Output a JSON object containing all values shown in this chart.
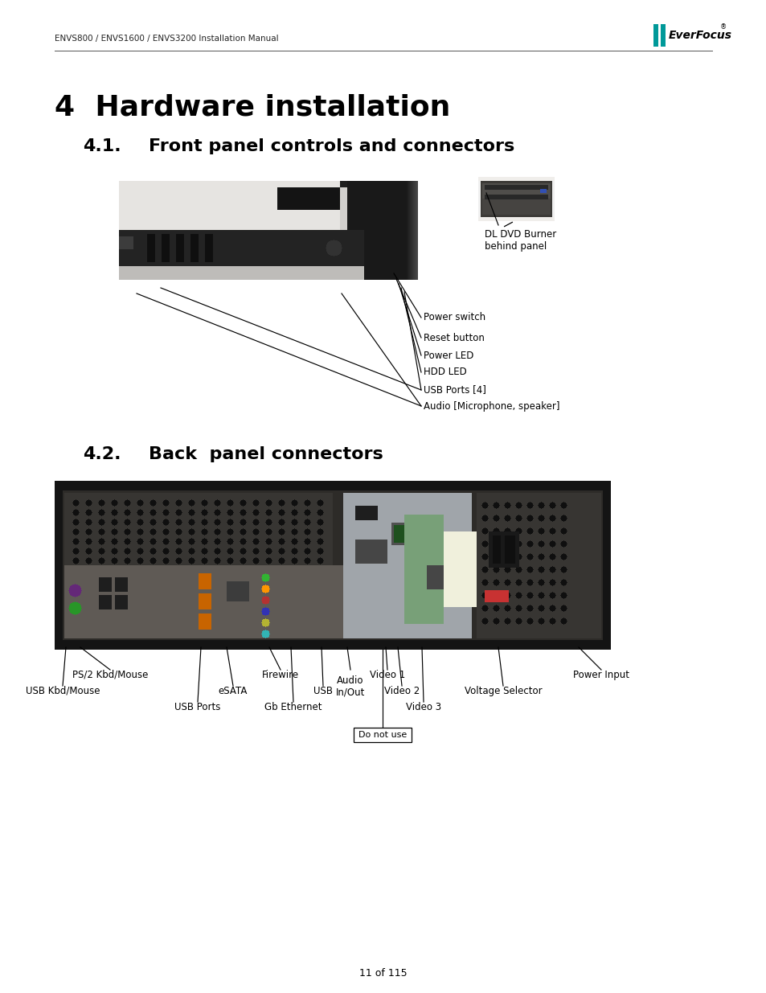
{
  "bg_color": "#ffffff",
  "header_text": "ENVS800 / ENVS1600 / ENVS3200 Installation Manual",
  "header_font_size": 7.5,
  "chapter_title": "4  Hardware installation",
  "chapter_font_size": 26,
  "section1_number": "4.1.",
  "section1_text": "Front panel controls and connectors",
  "section1_font_size": 16,
  "section2_number": "4.2.",
  "section2_text": "Back  panel connectors",
  "section2_font_size": 16,
  "front_panel_labels": [
    "DL DVD Burner\nbehind panel",
    "Power switch",
    "Reset button",
    "Power LED",
    "HDD LED",
    "USB Ports [4]",
    "Audio [Microphone, speaker]"
  ],
  "back_panel_labels": [
    "PS/2 Kbd/Mouse",
    "USB Kbd/Mouse",
    "USB Ports",
    "eSATA",
    "Firewire",
    "Gb Ethernet",
    "USB",
    "Audio\nIn/Out",
    "Video 1",
    "Video 2",
    "Video 3",
    "Voltage Selector",
    "Power Input"
  ],
  "footer_text": "11 of 115",
  "footer_font_size": 9,
  "label_font_size": 8.5,
  "everfocus_teal": "#009999",
  "line_color": "#000000"
}
